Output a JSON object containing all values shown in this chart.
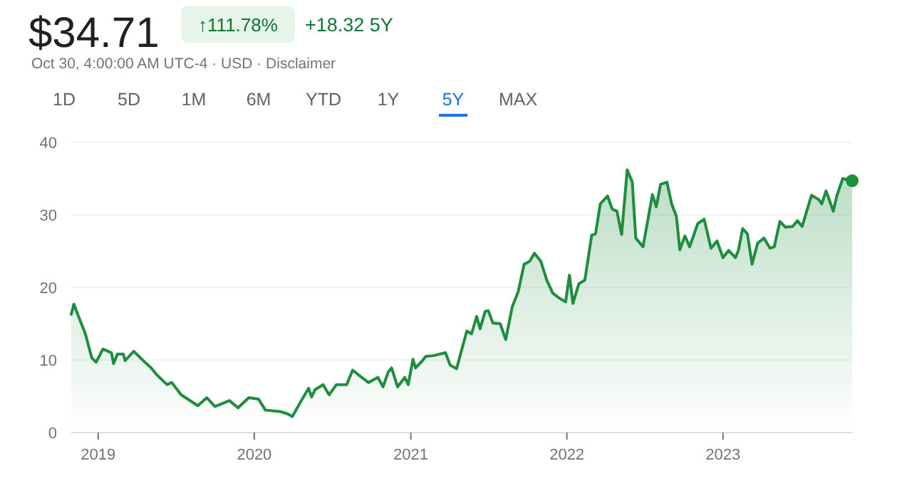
{
  "chart_data": {
    "type": "area",
    "title": "$34.71",
    "annotations": [
      "↑111.78%",
      "+18.32 5Y",
      "Oct 30, 4:00:00 AM UTC-4 · USD · Disclaimer",
      "1D",
      "5D",
      "1M",
      "6M",
      "YTD",
      "1Y",
      "5Y",
      "MAX"
    ],
    "xlim": [
      "2018-10-30",
      "2023-10-30"
    ],
    "xticks": [
      "2019",
      "2020",
      "2021",
      "2022",
      "2023"
    ],
    "ylim": [
      0,
      40
    ],
    "yticks": [
      0,
      10,
      20,
      30,
      40
    ],
    "grid": "y",
    "series": [
      {
        "color": "#1e8e3e",
        "x": [
          "2018-10-30",
          "2018-11-05",
          "2018-11-18",
          "2018-12-02",
          "2018-12-17",
          "2018-12-27",
          "2019-01-12",
          "2019-02-01",
          "2019-02-06",
          "2019-02-15",
          "2019-03-01",
          "2019-03-05",
          "2019-03-25",
          "2019-04-22",
          "2019-05-05",
          "2019-05-19",
          "2019-06-11",
          "2019-06-22",
          "2019-07-14",
          "2019-08-22",
          "2019-09-12",
          "2019-10-01",
          "2019-11-04",
          "2019-11-24",
          "2019-12-19",
          "2020-01-11",
          "2020-01-27",
          "2020-03-01",
          "2020-03-18",
          "2020-03-30",
          "2020-04-20",
          "2020-05-07",
          "2020-05-14",
          "2020-05-22",
          "2020-06-10",
          "2020-06-24",
          "2020-07-11",
          "2020-08-04",
          "2020-08-18",
          "2020-09-06",
          "2020-09-24",
          "2020-10-16",
          "2020-10-28",
          "2020-11-09",
          "2020-11-17",
          "2020-12-01",
          "2020-12-18",
          "2020-12-26",
          "2021-01-06",
          "2021-01-12",
          "2021-01-28",
          "2021-02-05",
          "2021-02-23",
          "2021-03-23",
          "2021-04-03",
          "2021-04-18",
          "2021-05-12",
          "2021-05-23",
          "2021-06-04",
          "2021-06-12",
          "2021-06-24",
          "2021-07-01",
          "2021-07-12",
          "2021-07-29",
          "2021-08-11",
          "2021-08-26",
          "2021-09-09",
          "2021-09-23",
          "2021-10-06",
          "2021-10-17",
          "2021-11-01",
          "2021-11-15",
          "2021-11-29",
          "2021-12-15",
          "2021-12-29",
          "2022-01-07",
          "2022-01-15",
          "2022-01-29",
          "2022-02-12",
          "2022-02-28",
          "2022-03-09",
          "2022-03-20",
          "2022-04-06",
          "2022-04-17",
          "2022-04-28",
          "2022-05-09",
          "2022-05-22",
          "2022-06-03",
          "2022-06-11",
          "2022-06-28",
          "2022-07-20",
          "2022-07-29",
          "2022-08-08",
          "2022-08-23",
          "2022-09-03",
          "2022-09-14",
          "2022-09-22",
          "2022-10-04",
          "2022-10-15",
          "2022-11-03",
          "2022-11-18",
          "2022-12-04",
          "2022-12-18",
          "2023-01-01",
          "2023-01-14",
          "2023-01-30",
          "2023-02-06",
          "2023-02-16",
          "2023-02-27",
          "2023-03-10",
          "2023-03-23",
          "2023-04-07",
          "2023-04-21",
          "2023-05-01",
          "2023-05-14",
          "2023-05-27",
          "2023-06-13",
          "2023-06-24",
          "2023-07-05",
          "2023-07-27",
          "2023-08-13",
          "2023-08-20",
          "2023-08-30",
          "2023-09-16",
          "2023-09-24",
          "2023-10-08",
          "2023-10-30"
        ],
        "values": [
          16.3,
          17.7,
          15.7,
          13.6,
          10.3,
          9.7,
          11.5,
          11.0,
          9.5,
          10.8,
          10.8,
          9.9,
          11.2,
          9.6,
          8.9,
          7.9,
          6.6,
          6.9,
          5.2,
          3.7,
          4.8,
          3.6,
          4.4,
          3.4,
          4.8,
          4.6,
          3.1,
          2.9,
          2.6,
          2.2,
          4.4,
          6.1,
          4.9,
          5.9,
          6.6,
          5.2,
          6.6,
          6.6,
          8.6,
          7.7,
          6.9,
          7.6,
          6.3,
          8.3,
          8.9,
          6.3,
          7.6,
          6.6,
          10.1,
          8.9,
          9.9,
          10.5,
          10.6,
          11.0,
          9.3,
          8.8,
          14.0,
          13.6,
          16.0,
          14.3,
          16.7,
          16.8,
          15.1,
          15.0,
          12.8,
          17.3,
          19.4,
          23.2,
          23.6,
          24.7,
          23.6,
          21.0,
          19.2,
          18.5,
          18.0,
          21.7,
          17.8,
          20.5,
          21.0,
          27.2,
          27.4,
          31.5,
          32.6,
          30.8,
          30.5,
          27.3,
          36.2,
          34.5,
          26.8,
          25.6,
          32.8,
          31.1,
          34.2,
          34.5,
          31.5,
          29.8,
          25.2,
          27.1,
          25.6,
          28.8,
          29.4,
          25.4,
          26.4,
          24.1,
          25.1,
          24.1,
          25.1,
          28.1,
          27.4,
          23.2,
          26.1,
          26.8,
          25.4,
          25.6,
          29.1,
          28.3,
          28.4,
          29.2,
          28.4,
          32.7,
          32.1,
          31.5,
          33.3,
          30.5,
          32.6,
          35.0,
          34.7
        ]
      }
    ]
  }
}
